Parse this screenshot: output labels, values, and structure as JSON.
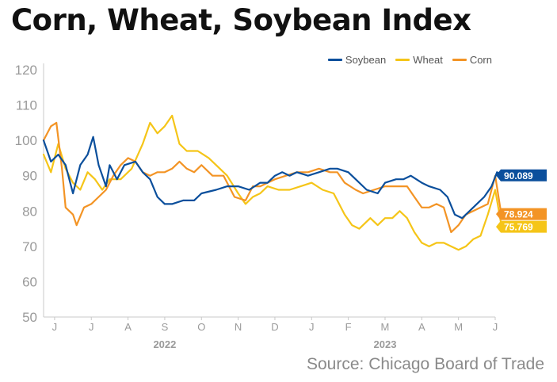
{
  "title": "Corn, Wheat, Soybean Index",
  "source": "Source: Chicago Board of Trade",
  "chart_data": {
    "type": "line",
    "title": "Corn, Wheat, Soybean Index",
    "xlabel": "",
    "ylabel": "",
    "ylim": [
      50,
      120
    ],
    "yticks": [
      50,
      60,
      70,
      80,
      90,
      100,
      110,
      120
    ],
    "xlim": [
      0,
      12.3
    ],
    "month_ticks": [
      {
        "x": 0.3,
        "label": "J"
      },
      {
        "x": 1.3,
        "label": "J"
      },
      {
        "x": 2.3,
        "label": "A"
      },
      {
        "x": 3.3,
        "label": "S"
      },
      {
        "x": 4.3,
        "label": "O"
      },
      {
        "x": 5.3,
        "label": "N"
      },
      {
        "x": 6.3,
        "label": "D"
      },
      {
        "x": 7.3,
        "label": "J"
      },
      {
        "x": 8.3,
        "label": "F"
      },
      {
        "x": 9.3,
        "label": "M"
      },
      {
        "x": 10.3,
        "label": "A"
      },
      {
        "x": 11.3,
        "label": "M"
      },
      {
        "x": 12.3,
        "label": "J"
      }
    ],
    "years": [
      {
        "x": 3.3,
        "label": "2022"
      },
      {
        "x": 9.3,
        "label": "2023"
      }
    ],
    "grid": false,
    "legend": "top-right",
    "series": [
      {
        "name": "Soybean",
        "color": "#0b4f9c",
        "end_label": "90.089",
        "points": [
          [
            0,
            100
          ],
          [
            0.2,
            94
          ],
          [
            0.4,
            96
          ],
          [
            0.6,
            93
          ],
          [
            0.8,
            85
          ],
          [
            1,
            93
          ],
          [
            1.2,
            96
          ],
          [
            1.35,
            101
          ],
          [
            1.5,
            93
          ],
          [
            1.7,
            87
          ],
          [
            1.8,
            93
          ],
          [
            2,
            89
          ],
          [
            2.2,
            93
          ],
          [
            2.5,
            94
          ],
          [
            2.7,
            91
          ],
          [
            2.9,
            89
          ],
          [
            3.1,
            84
          ],
          [
            3.3,
            82
          ],
          [
            3.5,
            82
          ],
          [
            3.8,
            83
          ],
          [
            4.1,
            83
          ],
          [
            4.3,
            85
          ],
          [
            4.7,
            86
          ],
          [
            5,
            87
          ],
          [
            5.3,
            87
          ],
          [
            5.6,
            86
          ],
          [
            5.9,
            88
          ],
          [
            6.1,
            88
          ],
          [
            6.3,
            90
          ],
          [
            6.5,
            91
          ],
          [
            6.7,
            90
          ],
          [
            6.9,
            91
          ],
          [
            7.2,
            90
          ],
          [
            7.5,
            91
          ],
          [
            7.8,
            92
          ],
          [
            8,
            92
          ],
          [
            8.3,
            91
          ],
          [
            8.5,
            89
          ],
          [
            8.8,
            86
          ],
          [
            9.1,
            85
          ],
          [
            9.3,
            88
          ],
          [
            9.6,
            89
          ],
          [
            9.8,
            89
          ],
          [
            10,
            90
          ],
          [
            10.3,
            88
          ],
          [
            10.5,
            87
          ],
          [
            10.8,
            86
          ],
          [
            11,
            84
          ],
          [
            11.2,
            79
          ],
          [
            11.4,
            78
          ],
          [
            11.6,
            80
          ],
          [
            11.8,
            82
          ],
          [
            12,
            84
          ],
          [
            12.2,
            87
          ],
          [
            12.35,
            91
          ],
          [
            12.5,
            90
          ],
          [
            12.6,
            89
          ],
          [
            12.7,
            90.1
          ]
        ]
      },
      {
        "name": "Wheat",
        "color": "#f5c518",
        "end_label": "75.769",
        "points": [
          [
            0,
            96
          ],
          [
            0.2,
            91
          ],
          [
            0.4,
            99
          ],
          [
            0.6,
            92
          ],
          [
            0.8,
            88
          ],
          [
            1,
            86
          ],
          [
            1.2,
            91
          ],
          [
            1.4,
            89
          ],
          [
            1.6,
            86
          ],
          [
            1.8,
            89
          ],
          [
            2.1,
            89
          ],
          [
            2.4,
            92
          ],
          [
            2.7,
            99
          ],
          [
            2.9,
            105
          ],
          [
            3.1,
            102
          ],
          [
            3.3,
            104
          ],
          [
            3.5,
            107
          ],
          [
            3.7,
            99
          ],
          [
            3.9,
            97
          ],
          [
            4.2,
            97
          ],
          [
            4.5,
            95
          ],
          [
            4.7,
            93
          ],
          [
            5,
            90
          ],
          [
            5.3,
            85
          ],
          [
            5.5,
            82
          ],
          [
            5.7,
            84
          ],
          [
            5.9,
            85
          ],
          [
            6.1,
            87
          ],
          [
            6.4,
            86
          ],
          [
            6.7,
            86
          ],
          [
            7,
            87
          ],
          [
            7.3,
            88
          ],
          [
            7.6,
            86
          ],
          [
            7.9,
            85
          ],
          [
            8.2,
            79
          ],
          [
            8.4,
            76
          ],
          [
            8.6,
            75
          ],
          [
            8.9,
            78
          ],
          [
            9.1,
            76
          ],
          [
            9.3,
            78
          ],
          [
            9.5,
            78
          ],
          [
            9.7,
            80
          ],
          [
            9.9,
            78
          ],
          [
            10.1,
            74
          ],
          [
            10.3,
            71
          ],
          [
            10.5,
            70
          ],
          [
            10.7,
            71
          ],
          [
            10.9,
            71
          ],
          [
            11.1,
            70
          ],
          [
            11.3,
            69
          ],
          [
            11.5,
            70
          ],
          [
            11.7,
            72
          ],
          [
            11.9,
            73
          ],
          [
            12.1,
            79
          ],
          [
            12.3,
            86
          ],
          [
            12.45,
            77
          ],
          [
            12.55,
            75.5
          ],
          [
            12.7,
            75.8
          ]
        ]
      },
      {
        "name": "Corn",
        "color": "#f39425",
        "end_label": "78.924",
        "points": [
          [
            0,
            100
          ],
          [
            0.2,
            104
          ],
          [
            0.35,
            105
          ],
          [
            0.5,
            92
          ],
          [
            0.6,
            81
          ],
          [
            0.8,
            79
          ],
          [
            0.9,
            76
          ],
          [
            1.1,
            81
          ],
          [
            1.3,
            82
          ],
          [
            1.5,
            84
          ],
          [
            1.7,
            86
          ],
          [
            1.9,
            90
          ],
          [
            2.1,
            93
          ],
          [
            2.3,
            95
          ],
          [
            2.5,
            94
          ],
          [
            2.7,
            91
          ],
          [
            2.9,
            90
          ],
          [
            3.1,
            91
          ],
          [
            3.3,
            91
          ],
          [
            3.5,
            92
          ],
          [
            3.7,
            94
          ],
          [
            3.9,
            92
          ],
          [
            4.1,
            91
          ],
          [
            4.3,
            93
          ],
          [
            4.6,
            90
          ],
          [
            4.9,
            90
          ],
          [
            5.2,
            84
          ],
          [
            5.5,
            83
          ],
          [
            5.7,
            87
          ],
          [
            5.9,
            87
          ],
          [
            6.1,
            88
          ],
          [
            6.3,
            89
          ],
          [
            6.6,
            90
          ],
          [
            6.9,
            91
          ],
          [
            7.2,
            91
          ],
          [
            7.5,
            92
          ],
          [
            7.8,
            91
          ],
          [
            8,
            91
          ],
          [
            8.2,
            88
          ],
          [
            8.5,
            86
          ],
          [
            8.7,
            85
          ],
          [
            9,
            86
          ],
          [
            9.3,
            87
          ],
          [
            9.6,
            87
          ],
          [
            9.9,
            87
          ],
          [
            10.1,
            84
          ],
          [
            10.3,
            81
          ],
          [
            10.5,
            81
          ],
          [
            10.7,
            82
          ],
          [
            10.9,
            81
          ],
          [
            11.1,
            74
          ],
          [
            11.3,
            76
          ],
          [
            11.5,
            79
          ],
          [
            11.7,
            80
          ],
          [
            11.9,
            81
          ],
          [
            12.1,
            82
          ],
          [
            12.3,
            90
          ],
          [
            12.45,
            80
          ],
          [
            12.55,
            78
          ],
          [
            12.7,
            78.9
          ]
        ]
      }
    ]
  }
}
